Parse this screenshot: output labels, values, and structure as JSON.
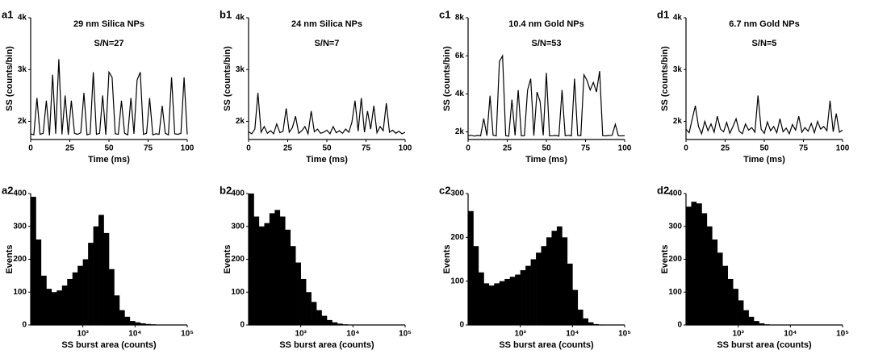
{
  "chart_data": [
    {
      "type": "line",
      "panel": "a1",
      "title": "29 nm Silica NPs",
      "annotation": "S/N=27",
      "x_label": "Time (ms)",
      "y_label": "SS (counts/bin)",
      "xlim": [
        0,
        100
      ],
      "xticks": [
        0,
        25,
        50,
        75,
        100
      ],
      "ylim": [
        1650,
        4000
      ],
      "yticks": [
        {
          "value": 2000,
          "label": "2k"
        },
        {
          "value": 3000,
          "label": "3k"
        },
        {
          "value": 4000,
          "label": "4k"
        }
      ],
      "color": "#000000",
      "x": [
        0,
        2,
        4,
        6,
        8,
        10,
        12,
        14,
        16,
        18,
        20,
        22,
        24,
        26,
        28,
        30,
        32,
        34,
        36,
        38,
        40,
        42,
        44,
        46,
        48,
        50,
        52,
        54,
        56,
        58,
        60,
        62,
        64,
        66,
        68,
        70,
        72,
        74,
        76,
        78,
        80,
        82,
        84,
        86,
        88,
        90,
        92,
        94,
        96,
        98,
        100
      ],
      "values": [
        1760,
        1740,
        2450,
        1750,
        1770,
        2400,
        1730,
        2900,
        1760,
        3200,
        1750,
        2500,
        1740,
        2400,
        1770,
        1750,
        1780,
        2550,
        1740,
        1760,
        2950,
        1750,
        1770,
        2500,
        1740,
        2950,
        2850,
        1760,
        1750,
        2400,
        1770,
        1740,
        2450,
        1760,
        2800,
        2950,
        1750,
        1770,
        2450,
        1740,
        1760,
        1750,
        2300,
        1770,
        1740,
        2850,
        1760,
        1750,
        1770,
        2850,
        1750
      ]
    },
    {
      "type": "line",
      "panel": "b1",
      "title": "24 nm Silica NPs",
      "annotation": "S/N=7",
      "x_label": "Time (ms)",
      "y_label": "SS (counts/bin)",
      "xlim": [
        0,
        100
      ],
      "xticks": [
        0,
        25,
        50,
        75,
        100
      ],
      "ylim": [
        1650,
        4000
      ],
      "yticks": [
        {
          "value": 2000,
          "label": "2k"
        },
        {
          "value": 3000,
          "label": "3k"
        },
        {
          "value": 4000,
          "label": "4k"
        }
      ],
      "color": "#000000",
      "x": [
        0,
        2,
        4,
        6,
        8,
        10,
        12,
        14,
        16,
        18,
        20,
        22,
        24,
        26,
        28,
        30,
        32,
        34,
        36,
        38,
        40,
        42,
        44,
        46,
        48,
        50,
        52,
        54,
        56,
        58,
        60,
        62,
        64,
        66,
        68,
        70,
        72,
        74,
        76,
        78,
        80,
        82,
        84,
        86,
        88,
        90,
        92,
        94,
        96,
        98,
        100
      ],
      "values": [
        1800,
        1760,
        1850,
        2550,
        1790,
        1900,
        1770,
        1820,
        1760,
        1950,
        1780,
        1810,
        2250,
        1790,
        1880,
        2100,
        1770,
        1820,
        1900,
        1760,
        2200,
        1800,
        1850,
        1770,
        1790,
        1830,
        1760,
        1900,
        1780,
        1820,
        1770,
        1850,
        1790,
        1980,
        2400,
        1810,
        2450,
        1790,
        2200,
        1850,
        2300,
        1780,
        1900,
        1820,
        2350,
        1790,
        1830,
        1770,
        1810,
        1760,
        1790
      ]
    },
    {
      "type": "line",
      "panel": "c1",
      "title": "10.4 nm Gold NPs",
      "annotation": "S/N=53",
      "x_label": "Time (ms)",
      "y_label": "SS (counts/bin)",
      "xlim": [
        0,
        100
      ],
      "xticks": [
        0,
        25,
        50,
        75,
        100
      ],
      "ylim": [
        1600,
        8000
      ],
      "yticks": [
        {
          "value": 2000,
          "label": "2k"
        },
        {
          "value": 4000,
          "label": "4k"
        },
        {
          "value": 6000,
          "label": "6k"
        },
        {
          "value": 8000,
          "label": "8k"
        }
      ],
      "color": "#000000",
      "x": [
        0,
        2,
        4,
        6,
        8,
        10,
        12,
        14,
        16,
        18,
        20,
        22,
        24,
        26,
        28,
        30,
        32,
        34,
        36,
        38,
        40,
        42,
        44,
        46,
        48,
        50,
        52,
        54,
        56,
        58,
        60,
        62,
        64,
        66,
        68,
        70,
        72,
        74,
        76,
        78,
        80,
        82,
        84,
        86,
        88,
        90,
        92,
        94,
        96,
        98,
        100
      ],
      "values": [
        1800,
        1820,
        1780,
        1810,
        1790,
        2700,
        1800,
        3900,
        1820,
        1790,
        5700,
        6000,
        1800,
        1780,
        3700,
        1810,
        4200,
        1790,
        1800,
        4200,
        4800,
        1800,
        4100,
        3600,
        1820,
        5100,
        1790,
        1800,
        1810,
        1780,
        4200,
        1800,
        1820,
        1790,
        4800,
        1810,
        1800,
        5000,
        4700,
        4200,
        4600,
        4100,
        5200,
        1800,
        1790,
        1810,
        1820,
        2400,
        1800,
        1790,
        1800
      ]
    },
    {
      "type": "line",
      "panel": "d1",
      "title": "6.7 nm Gold NPs",
      "annotation": "S/N=5",
      "x_label": "Time (ms)",
      "y_label": "SS (counts/bin)",
      "xlim": [
        0,
        100
      ],
      "xticks": [
        0,
        25,
        50,
        75,
        100
      ],
      "ylim": [
        1650,
        4000
      ],
      "yticks": [
        {
          "value": 2000,
          "label": "2k"
        },
        {
          "value": 3000,
          "label": "3k"
        },
        {
          "value": 4000,
          "label": "4k"
        }
      ],
      "color": "#000000",
      "x": [
        0,
        2,
        4,
        6,
        8,
        10,
        12,
        14,
        16,
        18,
        20,
        22,
        24,
        26,
        28,
        30,
        32,
        34,
        36,
        38,
        40,
        42,
        44,
        46,
        48,
        50,
        52,
        54,
        56,
        58,
        60,
        62,
        64,
        66,
        68,
        70,
        72,
        74,
        76,
        78,
        80,
        82,
        84,
        86,
        88,
        90,
        92,
        94,
        96,
        98,
        100
      ],
      "values": [
        1850,
        1780,
        2050,
        2300,
        1900,
        1760,
        2000,
        1820,
        1950,
        1790,
        2100,
        1850,
        1800,
        1980,
        1770,
        1900,
        2050,
        1810,
        1760,
        1950,
        1830,
        1880,
        1790,
        2500,
        1850,
        1770,
        1990,
        1820,
        1900,
        1780,
        2050,
        1800,
        1870,
        1760,
        1940,
        1830,
        2100,
        1790,
        1880,
        1810,
        1960,
        1780,
        2000,
        1850,
        1900,
        1820,
        2400,
        1800,
        2150,
        1790,
        1830
      ]
    },
    {
      "type": "histogram",
      "panel": "a2",
      "x_label": "SS burst area (counts)",
      "y_label": "Events",
      "log_x": true,
      "xlim": [
        100,
        100000
      ],
      "xticks": [
        {
          "value": 1000,
          "label": "10³"
        },
        {
          "value": 10000,
          "label": "10⁴"
        },
        {
          "value": 100000,
          "label": "10⁵"
        }
      ],
      "ylim": [
        0,
        400
      ],
      "yticks": [
        0,
        100,
        200,
        300,
        400
      ],
      "color": "#000000",
      "bins": [
        100,
        126,
        158,
        200,
        251,
        316,
        398,
        501,
        631,
        794,
        1000,
        1259,
        1585,
        1995,
        2512,
        3162,
        3981,
        5012,
        6310,
        7943,
        10000,
        12589,
        15849,
        19953,
        25119,
        31623,
        39811,
        50119,
        63096,
        79433,
        100000
      ],
      "values": [
        390,
        260,
        150,
        110,
        100,
        105,
        120,
        140,
        160,
        180,
        200,
        250,
        300,
        335,
        280,
        170,
        90,
        45,
        25,
        12,
        8,
        5,
        3,
        2,
        1,
        1,
        0,
        0,
        0,
        0
      ]
    },
    {
      "type": "histogram",
      "panel": "b2",
      "x_label": "SS burst area (counts)",
      "y_label": "Events",
      "log_x": true,
      "xlim": [
        100,
        100000
      ],
      "xticks": [
        {
          "value": 1000,
          "label": "10³"
        },
        {
          "value": 10000,
          "label": "10⁴"
        },
        {
          "value": 100000,
          "label": "10⁵"
        }
      ],
      "ylim": [
        0,
        400
      ],
      "yticks": [
        0,
        100,
        200,
        300,
        400
      ],
      "color": "#000000",
      "bins": [
        100,
        126,
        158,
        200,
        251,
        316,
        398,
        501,
        631,
        794,
        1000,
        1259,
        1585,
        1995,
        2512,
        3162,
        3981,
        5012,
        6310,
        7943,
        10000,
        12589,
        15849,
        19953,
        25119,
        31623,
        39811,
        50119,
        63096,
        79433,
        100000
      ],
      "values": [
        400,
        330,
        300,
        310,
        340,
        350,
        330,
        290,
        240,
        190,
        140,
        100,
        70,
        45,
        28,
        15,
        8,
        4,
        2,
        1,
        0,
        0,
        0,
        0,
        0,
        0,
        0,
        0,
        0,
        0
      ]
    },
    {
      "type": "histogram",
      "panel": "c2",
      "x_label": "SS burst area (counts)",
      "y_label": "Events",
      "log_x": true,
      "xlim": [
        100,
        100000
      ],
      "xticks": [
        {
          "value": 1000,
          "label": "10³"
        },
        {
          "value": 10000,
          "label": "10⁴"
        },
        {
          "value": 100000,
          "label": "10⁵"
        }
      ],
      "ylim": [
        0,
        300
      ],
      "yticks": [
        0,
        100,
        200,
        300
      ],
      "color": "#000000",
      "bins": [
        100,
        126,
        158,
        200,
        251,
        316,
        398,
        501,
        631,
        794,
        1000,
        1259,
        1585,
        1995,
        2512,
        3162,
        3981,
        5012,
        6310,
        7943,
        10000,
        12589,
        15849,
        19953,
        25119,
        31623,
        39811,
        50119,
        63096,
        79433,
        100000
      ],
      "values": [
        260,
        180,
        120,
        95,
        90,
        95,
        100,
        105,
        110,
        115,
        125,
        135,
        150,
        165,
        180,
        200,
        215,
        225,
        200,
        140,
        80,
        35,
        15,
        6,
        2,
        1,
        0,
        0,
        0,
        0
      ]
    },
    {
      "type": "histogram",
      "panel": "d2",
      "x_label": "SS burst area (counts)",
      "y_label": "Events",
      "log_x": true,
      "xlim": [
        100,
        100000
      ],
      "xticks": [
        {
          "value": 1000,
          "label": "10³"
        },
        {
          "value": 10000,
          "label": "10⁴"
        },
        {
          "value": 100000,
          "label": "10⁵"
        }
      ],
      "ylim": [
        0,
        400
      ],
      "yticks": [
        0,
        100,
        200,
        300,
        400
      ],
      "color": "#000000",
      "bins": [
        100,
        126,
        158,
        200,
        251,
        316,
        398,
        501,
        631,
        794,
        1000,
        1259,
        1585,
        1995,
        2512,
        3162,
        3981,
        5012,
        6310,
        7943,
        10000,
        12589,
        15849,
        19953,
        25119,
        31623,
        39811,
        50119,
        63096,
        79433,
        100000
      ],
      "values": [
        360,
        375,
        370,
        340,
        300,
        260,
        220,
        180,
        140,
        110,
        75,
        45,
        25,
        12,
        5,
        2,
        1,
        0,
        0,
        0,
        0,
        0,
        0,
        0,
        0,
        0,
        0,
        0,
        0,
        0
      ]
    }
  ]
}
